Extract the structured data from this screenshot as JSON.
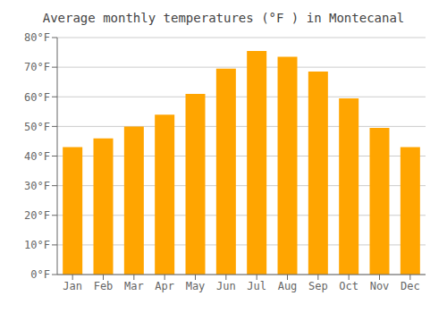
{
  "chart_data": {
    "type": "bar",
    "title": "Average monthly temperatures (°F ) in Montecanal",
    "categories": [
      "Jan",
      "Feb",
      "Mar",
      "Apr",
      "May",
      "Jun",
      "Jul",
      "Aug",
      "Sep",
      "Oct",
      "Nov",
      "Dec"
    ],
    "values": [
      43,
      46,
      50,
      54,
      61,
      69.5,
      75.5,
      73.5,
      68.5,
      59.5,
      49.5,
      43
    ],
    "color": "#FFA500",
    "ylim": [
      0,
      80
    ],
    "yticks": [
      {
        "value": 0,
        "label": "0°F"
      },
      {
        "value": 10,
        "label": "10°F"
      },
      {
        "value": 20,
        "label": "20°F"
      },
      {
        "value": 30,
        "label": "30°F"
      },
      {
        "value": 40,
        "label": "40°F"
      },
      {
        "value": 50,
        "label": "50°F"
      },
      {
        "value": 60,
        "label": "60°F"
      },
      {
        "value": 70,
        "label": "70°F"
      },
      {
        "value": 80,
        "label": "80°F"
      }
    ],
    "grid": true
  }
}
